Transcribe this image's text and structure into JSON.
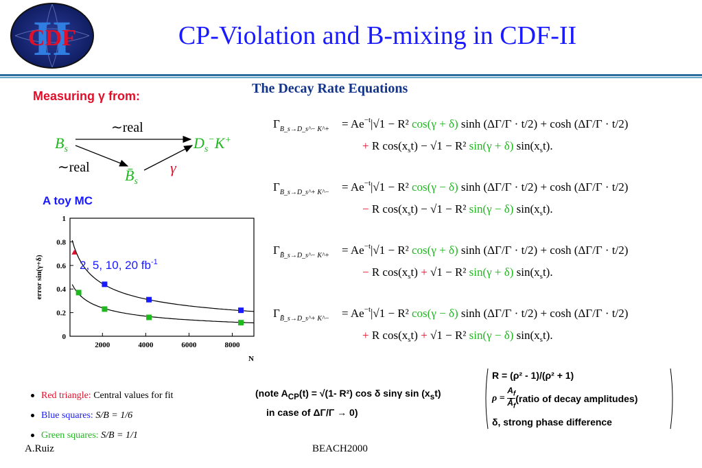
{
  "header": {
    "title": "CP-Violation and B-mixing in CDF-II",
    "logo_text": "CDF",
    "logo_numeral": "II"
  },
  "left": {
    "measuring_label": "Measuring γ from:",
    "diagram": {
      "real_top": "∼real",
      "real_left": "∼real",
      "gamma": "γ"
    },
    "toy_label": "A toy MC"
  },
  "chart_data": {
    "type": "scatter",
    "title": "",
    "xlabel": "N",
    "ylabel": "error sin(γ+δ)",
    "xlim": [
      500,
      9000
    ],
    "ylim": [
      0,
      1
    ],
    "xticks": [
      "2000",
      "4000",
      "6000",
      "8000"
    ],
    "yticks": [
      "0",
      "0.2",
      "0.4",
      "0.6",
      "0.8",
      "1"
    ],
    "annotation": "2, 5, 10, 20 fb",
    "annotation_sup": "-1",
    "series": [
      {
        "color": "#e0102a",
        "marker": "triangle",
        "x": [
          700
        ],
        "y": [
          0.71
        ]
      },
      {
        "color": "#1a1aff",
        "marker": "square",
        "x": [
          2100,
          4150,
          8400
        ],
        "y": [
          0.44,
          0.31,
          0.22
        ]
      },
      {
        "color": "#1fb81f",
        "marker": "square",
        "x": [
          900,
          2100,
          4150,
          8400
        ],
        "y": [
          0.37,
          0.23,
          0.16,
          0.115
        ]
      }
    ]
  },
  "bullets": [
    {
      "colored": "Red triangle:",
      "rest": "Central values for fit",
      "color": "#e0102a"
    },
    {
      "colored": "Blue squares:",
      "rest": "S/B = 1/6",
      "color": "#1a1aff"
    },
    {
      "colored": "Green squares:",
      "rest": "S/B = 1/1",
      "color": "#1fb81f"
    }
  ],
  "decay": {
    "title": "The Decay Rate Equations",
    "eq1_sub": "B_s→D_s^− K^+",
    "eq2_sub": "B_s→D_s^+ K^−",
    "eq3_sub": "B̄_s→D_s^− K^+",
    "eq4_sub": "B̄_s→D_s^+ K^−"
  },
  "note": {
    "line1": "(note  A",
    "line1_sub": "CP",
    "line1_rest": "(t) = √(1- R²) cos δ sinγ sin (x",
    "line1_sub2": "s",
    "line1_end": "t)",
    "line2": "in case of ΔΓ/Γ → 0)"
  },
  "rbox": {
    "line1": "R = (ρ² - 1)/(ρ² + 1)",
    "line2": "(ratio of decay amplitudes)",
    "line3": "δ, strong phase difference"
  },
  "footer": {
    "left": "A.Ruiz",
    "center": "BEACH2000"
  }
}
